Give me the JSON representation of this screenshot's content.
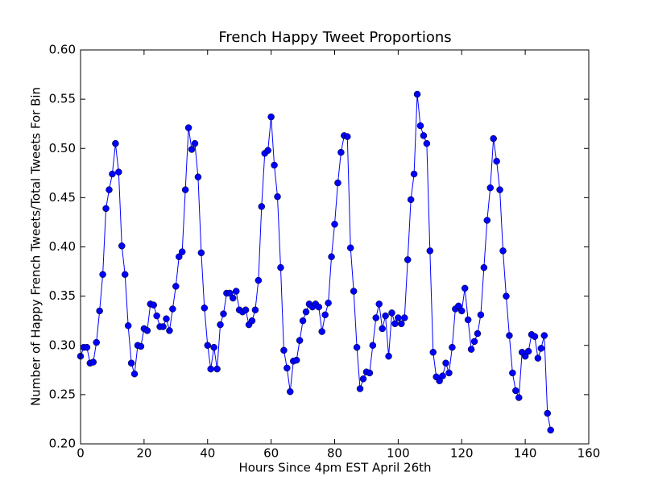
{
  "chart_data": {
    "type": "line",
    "title": "French Happy Tweet Proportions",
    "x_label": "Hours Since 4pm EST April 26th",
    "y_label": "Number of Happy French Tweets/Total Tweets For Bin",
    "color": "#0000ff",
    "x": [
      0,
      1,
      2,
      3,
      4,
      5,
      6,
      7,
      8,
      9,
      10,
      11,
      12,
      13,
      14,
      15,
      16,
      17,
      18,
      19,
      20,
      21,
      22,
      23,
      24,
      25,
      26,
      27,
      28,
      29,
      30,
      31,
      32,
      33,
      34,
      35,
      36,
      37,
      38,
      39,
      40,
      41,
      42,
      43,
      44,
      45,
      46,
      47,
      48,
      49,
      50,
      51,
      52,
      53,
      54,
      55,
      56,
      57,
      58,
      59,
      60,
      61,
      62,
      63,
      64,
      65,
      66,
      67,
      68,
      69,
      70,
      71,
      72,
      73,
      74,
      75,
      76,
      77,
      78,
      79,
      80,
      81,
      82,
      83,
      84,
      85,
      86,
      87,
      88,
      89,
      90,
      91,
      92,
      93,
      94,
      95,
      96,
      97,
      98,
      99,
      100,
      101,
      102,
      103,
      104,
      105,
      106,
      107,
      108,
      109,
      110,
      111,
      112,
      113,
      114,
      115,
      116,
      117,
      118,
      119,
      120,
      121,
      122,
      123,
      124,
      125,
      126,
      127,
      128,
      129,
      130,
      131,
      132,
      133,
      134,
      135,
      136,
      137,
      138,
      139,
      140,
      141,
      142,
      143,
      144,
      145,
      146,
      147,
      148
    ],
    "values": [
      0.289,
      0.298,
      0.298,
      0.282,
      0.283,
      0.303,
      0.335,
      0.372,
      0.439,
      0.458,
      0.474,
      0.505,
      0.476,
      0.401,
      0.372,
      0.32,
      0.282,
      0.271,
      0.3,
      0.299,
      0.317,
      0.315,
      0.342,
      0.341,
      0.33,
      0.319,
      0.319,
      0.327,
      0.315,
      0.337,
      0.36,
      0.39,
      0.395,
      0.458,
      0.521,
      0.499,
      0.505,
      0.471,
      0.394,
      0.338,
      0.3,
      0.276,
      0.298,
      0.276,
      0.321,
      0.332,
      0.353,
      0.353,
      0.348,
      0.355,
      0.336,
      0.334,
      0.336,
      0.321,
      0.325,
      0.336,
      0.366,
      0.441,
      0.495,
      0.498,
      0.532,
      0.483,
      0.451,
      0.379,
      0.295,
      0.277,
      0.253,
      0.284,
      0.285,
      0.305,
      0.325,
      0.334,
      0.342,
      0.339,
      0.342,
      0.339,
      0.314,
      0.331,
      0.343,
      0.39,
      0.423,
      0.465,
      0.496,
      0.513,
      0.512,
      0.399,
      0.355,
      0.298,
      0.256,
      0.266,
      0.273,
      0.272,
      0.3,
      0.328,
      0.342,
      0.317,
      0.33,
      0.289,
      0.333,
      0.322,
      0.328,
      0.322,
      0.328,
      0.387,
      0.448,
      0.474,
      0.555,
      0.523,
      0.513,
      0.505,
      0.396,
      0.293,
      0.268,
      0.264,
      0.269,
      0.282,
      0.272,
      0.298,
      0.337,
      0.34,
      0.335,
      0.358,
      0.326,
      0.296,
      0.304,
      0.312,
      0.331,
      0.379,
      0.427,
      0.46,
      0.51,
      0.487,
      0.458,
      0.396,
      0.35,
      0.31,
      0.272,
      0.254,
      0.247,
      0.293,
      0.289,
      0.294,
      0.311,
      0.309,
      0.287,
      0.297,
      0.31,
      0.231,
      0.214
    ],
    "xlim": [
      0,
      160
    ],
    "xticks": [
      0,
      20,
      40,
      60,
      80,
      100,
      120,
      140,
      160
    ],
    "ylim": [
      0.2,
      0.6
    ],
    "yticks": [
      {
        "value": 0.2,
        "label": "0.20"
      },
      {
        "value": 0.25,
        "label": "0.25"
      },
      {
        "value": 0.3,
        "label": "0.30"
      },
      {
        "value": 0.35,
        "label": "0.35"
      },
      {
        "value": 0.4,
        "label": "0.40"
      },
      {
        "value": 0.45,
        "label": "0.45"
      },
      {
        "value": 0.5,
        "label": "0.50"
      },
      {
        "value": 0.55,
        "label": "0.55"
      },
      {
        "value": 0.6,
        "label": "0.60"
      }
    ]
  }
}
